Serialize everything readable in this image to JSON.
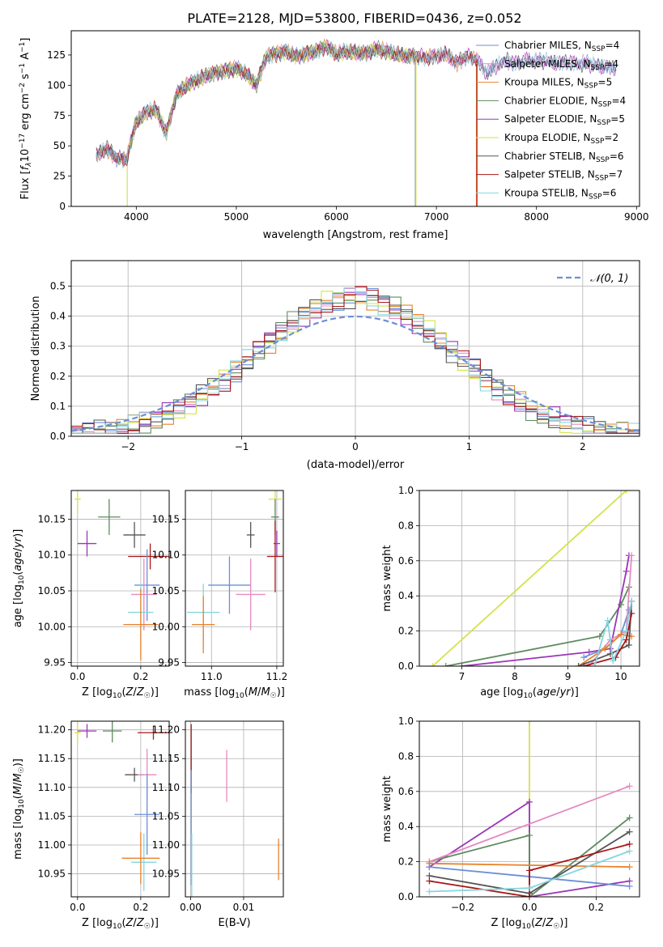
{
  "figure": {
    "title": "PLATE=2128, MJD=53800, FIBERID=0436, z=0.052"
  },
  "colors": {
    "chabrier_miles": "#6b8fd6",
    "salpeter_miles": "#e58ac0",
    "kroupa_miles": "#e8822a",
    "chabrier_elodie": "#5f8a5f",
    "salpeter_elodie": "#9a36b8",
    "kroupa_elodie": "#d5e24b",
    "chabrier_stelib": "#555555",
    "salpeter_stelib": "#a81818",
    "kroupa_stelib": "#86d5e0"
  },
  "chart_data": [
    {
      "id": "spectrum",
      "type": "line",
      "xlabel": "wavelength [Angstrom, rest frame]",
      "ylabel": "Flux [f_λ10^-17 erg cm^-2 s^-1 A^-1]",
      "xlim": [
        3350,
        9030
      ],
      "ylim": [
        0,
        145
      ],
      "xticks": [
        4000,
        5000,
        6000,
        7000,
        8000,
        9000
      ],
      "yticks": [
        0,
        25,
        50,
        75,
        100,
        125
      ],
      "grid": false,
      "legend_position": "top-right",
      "legend": [
        {
          "label": "Chabrier MILES, N",
          "sub": "SSP",
          "suffix": "=4",
          "color": "#6b8fd6"
        },
        {
          "label": "Salpeter MILES, N",
          "sub": "SSP",
          "suffix": "=4",
          "color": "#e58ac0"
        },
        {
          "label": "Kroupa MILES, N",
          "sub": "SSP",
          "suffix": "=5",
          "color": "#e8822a"
        },
        {
          "label": "Chabrier ELODIE, N",
          "sub": "SSP",
          "suffix": "=4",
          "color": "#5f8a5f"
        },
        {
          "label": "Salpeter ELODIE, N",
          "sub": "SSP",
          "suffix": "=5",
          "color": "#9a36b8"
        },
        {
          "label": "Kroupa ELODIE, N",
          "sub": "SSP",
          "suffix": "=2",
          "color": "#d5e24b"
        },
        {
          "label": "Chabrier STELIB, N",
          "sub": "SSP",
          "suffix": "=6",
          "color": "#555555"
        },
        {
          "label": "Salpeter STELIB, N",
          "sub": "SSP",
          "suffix": "=7",
          "color": "#a81818"
        },
        {
          "label": "Kroupa STELIB, N",
          "sub": "SSP",
          "suffix": "=6",
          "color": "#86d5e0"
        }
      ],
      "continuum": {
        "x": [
          3600,
          3700,
          3800,
          3900,
          4000,
          4100,
          4200,
          4300,
          4400,
          4500,
          4600,
          4700,
          4800,
          4900,
          5000,
          5100,
          5200,
          5300,
          5400,
          5500,
          5600,
          5700,
          5800,
          5900,
          6000,
          6100,
          6200,
          6300,
          6400,
          6500,
          6600,
          6700,
          6800,
          6900,
          7000,
          7100,
          7200,
          7300,
          7400,
          7500,
          7600,
          7700,
          7800,
          7900,
          8000,
          8100,
          8200,
          8300,
          8400,
          8500,
          8600,
          8700,
          8800
        ],
        "y": [
          42,
          48,
          40,
          38,
          70,
          78,
          80,
          60,
          92,
          100,
          104,
          108,
          110,
          112,
          114,
          110,
          100,
          124,
          126,
          128,
          124,
          126,
          128,
          132,
          126,
          128,
          127,
          126,
          130,
          128,
          126,
          124,
          124,
          123,
          124,
          126,
          118,
          124,
          122,
          110,
          116,
          120,
          118,
          121,
          120,
          120,
          118,
          119,
          118,
          118,
          116,
          115,
          114
        ]
      },
      "spectral_cutoffs": [
        {
          "model": "Kroupa ELODIE",
          "x": 3910
        },
        {
          "model": "Kroupa ELODIE",
          "x": 6795
        },
        {
          "model": "Chabrier ELODIE",
          "x": 6790
        },
        {
          "model": "Salpeter STELIB",
          "x": 7405
        },
        {
          "model": "Kroupa MILES",
          "x": 7400
        }
      ]
    },
    {
      "id": "residuals",
      "type": "bar",
      "xlabel": "(data-model)/error",
      "ylabel": "Normed distribution",
      "xlim": [
        -2.5,
        2.5
      ],
      "ylim": [
        0,
        0.585
      ],
      "xticks": [
        -2,
        -1,
        0,
        1,
        2
      ],
      "yticks": [
        0.0,
        0.1,
        0.2,
        0.3,
        0.4,
        0.5
      ],
      "grid": true,
      "legend_position": "top-right",
      "legend": [
        {
          "label": "𝒩(0, 1)",
          "style": "dashed",
          "color": "#6b8fd6"
        }
      ],
      "reference_curve": {
        "name": "𝒩(0, 1)",
        "mean": 0,
        "sigma": 1
      },
      "bin_width": 0.1
    },
    {
      "id": "age_vs_Z",
      "type": "scatter",
      "xlabel": "Z [log10(Z/Z☉)]",
      "ylabel": "age [log10(age/yr)]",
      "xlim": [
        -0.02,
        0.29
      ],
      "ylim": [
        9.945,
        10.19
      ],
      "xticks": [
        0.0,
        0.2
      ],
      "yticks": [
        9.95,
        10.0,
        10.05,
        10.1,
        10.15
      ],
      "grid": true,
      "points": [
        {
          "model": "Kroupa ELODIE",
          "x": 0.0,
          "y": 10.178,
          "xerr": 0.01,
          "yerr": 0.02
        },
        {
          "model": "Chabrier ELODIE",
          "x": 0.1,
          "y": 10.153,
          "xerr": 0.035,
          "yerr": 0.025
        },
        {
          "model": "Chabrier STELIB",
          "x": 0.18,
          "y": 10.128,
          "xerr": 0.035,
          "yerr": 0.018
        },
        {
          "model": "Salpeter ELODIE",
          "x": 0.03,
          "y": 10.116,
          "xerr": 0.03,
          "yerr": 0.018
        },
        {
          "model": "Salpeter STELIB",
          "x": 0.23,
          "y": 10.098,
          "xerr": 0.07,
          "yerr": 0.018
        },
        {
          "model": "Chabrier MILES",
          "x": 0.22,
          "y": 10.058,
          "xerr": 0.04,
          "yerr": 0.05
        },
        {
          "model": "Salpeter MILES",
          "x": 0.21,
          "y": 10.045,
          "xerr": 0.04,
          "yerr": 0.05
        },
        {
          "model": "Kroupa STELIB",
          "x": 0.2,
          "y": 10.02,
          "xerr": 0.04,
          "yerr": 0.04
        },
        {
          "model": "Kroupa MILES",
          "x": 0.2,
          "y": 10.003,
          "xerr": 0.055,
          "yerr": 0.05
        }
      ]
    },
    {
      "id": "age_vs_mass",
      "type": "scatter",
      "xlabel": "mass [log10(M/M☉)]",
      "ylabel": "",
      "xlim": [
        10.92,
        11.22
      ],
      "ylim": [
        9.945,
        10.19
      ],
      "xticks": [
        11.0,
        11.2
      ],
      "yticks": [
        9.95,
        10.0,
        10.05,
        10.1,
        10.15
      ],
      "grid": true,
      "points": [
        {
          "model": "Kroupa ELODIE",
          "x": 11.195,
          "y": 10.178,
          "xerr": 0.02,
          "yerr": 0.02
        },
        {
          "model": "Chabrier ELODIE",
          "x": 11.195,
          "y": 10.153,
          "xerr": 0.012,
          "yerr": 0.025
        },
        {
          "model": "Chabrier STELIB",
          "x": 11.12,
          "y": 10.128,
          "xerr": 0.012,
          "yerr": 0.018
        },
        {
          "model": "Salpeter ELODIE",
          "x": 11.2,
          "y": 10.116,
          "xerr": 0.01,
          "yerr": 0.018
        },
        {
          "model": "Salpeter STELIB",
          "x": 11.195,
          "y": 10.098,
          "xerr": 0.025,
          "yerr": 0.05
        },
        {
          "model": "Chabrier MILES",
          "x": 11.055,
          "y": 10.058,
          "xerr": 0.065,
          "yerr": 0.04
        },
        {
          "model": "Salpeter MILES",
          "x": 11.12,
          "y": 10.045,
          "xerr": 0.045,
          "yerr": 0.05
        },
        {
          "model": "Kroupa STELIB",
          "x": 10.975,
          "y": 10.02,
          "xerr": 0.05,
          "yerr": 0.04
        },
        {
          "model": "Kroupa MILES",
          "x": 10.975,
          "y": 10.003,
          "xerr": 0.035,
          "yerr": 0.04
        }
      ]
    },
    {
      "id": "weight_vs_age",
      "type": "line",
      "xlabel": "age [log10(age/yr)]",
      "ylabel": "mass weight",
      "xlim": [
        6.2,
        10.35
      ],
      "ylim": [
        0,
        1.0
      ],
      "xticks": [
        7,
        8,
        9,
        10
      ],
      "yticks": [
        0.0,
        0.2,
        0.4,
        0.6,
        0.8,
        1.0
      ],
      "grid": true,
      "series": [
        {
          "model": "Kroupa ELODIE",
          "x": [
            6.45,
            10.1
          ],
          "y": [
            0.0,
            1.0
          ]
        },
        {
          "model": "Chabrier ELODIE",
          "x": [
            6.7,
            9.6,
            10.0,
            10.15
          ],
          "y": [
            0.0,
            0.17,
            0.35,
            0.45
          ]
        },
        {
          "model": "Salpeter ELODIE",
          "x": [
            7.0,
            9.4,
            9.8,
            10.1,
            10.15
          ],
          "y": [
            0.0,
            0.08,
            0.1,
            0.54,
            0.63
          ]
        },
        {
          "model": "Chabrier MILES",
          "x": [
            9.3,
            9.7,
            10.0,
            10.15
          ],
          "y": [
            0.05,
            0.1,
            0.18,
            0.32
          ]
        },
        {
          "model": "Salpeter MILES",
          "x": [
            9.4,
            9.8,
            10.1,
            10.2
          ],
          "y": [
            0.0,
            0.15,
            0.2,
            0.63
          ]
        },
        {
          "model": "Kroupa MILES",
          "x": [
            9.2,
            9.7,
            10.0,
            10.2
          ],
          "y": [
            0.0,
            0.1,
            0.18,
            0.17
          ]
        },
        {
          "model": "Chabrier STELIB",
          "x": [
            9.2,
            9.8,
            10.15,
            10.2
          ],
          "y": [
            0.0,
            0.07,
            0.12,
            0.37
          ]
        },
        {
          "model": "Salpeter STELIB",
          "x": [
            9.3,
            9.9,
            10.1,
            10.2
          ],
          "y": [
            0.0,
            0.05,
            0.15,
            0.3
          ]
        },
        {
          "model": "Kroupa STELIB",
          "x": [
            9.5,
            9.75,
            9.85,
            10.1,
            10.2
          ],
          "y": [
            0.0,
            0.26,
            0.03,
            0.2,
            0.37
          ]
        }
      ]
    },
    {
      "id": "mass_vs_Z",
      "type": "scatter",
      "xlabel": "Z [log10(Z/Z☉)]",
      "ylabel": "mass [log10(M/M☉)]",
      "xlim": [
        -0.02,
        0.29
      ],
      "ylim": [
        10.91,
        11.215
      ],
      "xticks": [
        0.0,
        0.2
      ],
      "yticks": [
        10.95,
        11.0,
        11.05,
        11.1,
        11.15,
        11.2
      ],
      "grid": true,
      "points": [
        {
          "model": "Kroupa ELODIE",
          "x": 0.0,
          "y": 11.195,
          "xerr": 0.01,
          "yerr": 0.02
        },
        {
          "model": "Salpeter ELODIE",
          "x": 0.03,
          "y": 11.198,
          "xerr": 0.03,
          "yerr": 0.012
        },
        {
          "model": "Chabrier ELODIE",
          "x": 0.11,
          "y": 11.198,
          "xerr": 0.03,
          "yerr": 0.02
        },
        {
          "model": "Salpeter STELIB",
          "x": 0.24,
          "y": 11.195,
          "xerr": 0.05,
          "yerr": 0.012
        },
        {
          "model": "Chabrier STELIB",
          "x": 0.18,
          "y": 11.122,
          "xerr": 0.03,
          "yerr": 0.012
        },
        {
          "model": "Salpeter MILES",
          "x": 0.22,
          "y": 11.122,
          "xerr": 0.03,
          "yerr": 0.045
        },
        {
          "model": "Chabrier MILES",
          "x": 0.22,
          "y": 11.053,
          "xerr": 0.04,
          "yerr": 0.07
        },
        {
          "model": "Kroupa STELIB",
          "x": 0.21,
          "y": 10.97,
          "xerr": 0.04,
          "yerr": 0.05
        },
        {
          "model": "Kroupa MILES",
          "x": 0.2,
          "y": 10.977,
          "xerr": 0.06,
          "yerr": 0.045
        }
      ]
    },
    {
      "id": "mass_vs_ebv",
      "type": "scatter",
      "xlabel": "E(B-V)",
      "ylabel": "",
      "xlim": [
        -0.001,
        0.0175
      ],
      "ylim": [
        10.91,
        11.215
      ],
      "xticks": [
        0.0,
        0.01
      ],
      "yticks": [
        10.95,
        11.0,
        11.05,
        11.1,
        11.15,
        11.2
      ],
      "grid": true,
      "points": [
        {
          "model": "Salpeter STELIB",
          "x": 0.0001,
          "y": 11.15,
          "xerr": 0,
          "yerr": 0.06
        },
        {
          "model": "Chabrier MILES",
          "x": 0.0001,
          "y": 11.03,
          "xerr": 0,
          "yerr": 0.1
        },
        {
          "model": "Kroupa STELIB",
          "x": 0.0002,
          "y": 10.96,
          "xerr": 0,
          "yerr": 0.06
        },
        {
          "model": "Salpeter MILES",
          "x": 0.0068,
          "y": 11.12,
          "xerr": 0,
          "yerr": 0.045
        },
        {
          "model": "Kroupa MILES",
          "x": 0.0166,
          "y": 10.975,
          "xerr": 0,
          "yerr": 0.036
        }
      ]
    },
    {
      "id": "weight_vs_Z",
      "type": "line",
      "xlabel": "Z [log10(Z/Z☉)]",
      "ylabel": "mass weight",
      "xlim": [
        -0.33,
        0.33
      ],
      "ylim": [
        0,
        1.0
      ],
      "xticks": [
        -0.2,
        0.0,
        0.2
      ],
      "yticks": [
        0.0,
        0.2,
        0.4,
        0.6,
        0.8,
        1.0
      ],
      "grid": true,
      "series": [
        {
          "model": "Kroupa ELODIE",
          "x": [
            0.0,
            0.0
          ],
          "y": [
            0.0,
            1.0
          ]
        },
        {
          "model": "Salpeter ELODIE",
          "x": [
            -0.3,
            0.0,
            0.0,
            0.3
          ],
          "y": [
            0.17,
            0.54,
            0.0,
            0.09
          ]
        },
        {
          "model": "Chabrier ELODIE",
          "x": [
            -0.3,
            0.0,
            0.0,
            0.3
          ],
          "y": [
            0.2,
            0.35,
            0.0,
            0.45
          ]
        },
        {
          "model": "Salpeter MILES",
          "x": [
            -0.3,
            0.3
          ],
          "y": [
            0.2,
            0.63
          ]
        },
        {
          "model": "Kroupa MILES",
          "x": [
            -0.3,
            0.3
          ],
          "y": [
            0.19,
            0.17
          ]
        },
        {
          "model": "Chabrier MILES",
          "x": [
            -0.3,
            0.3
          ],
          "y": [
            0.17,
            0.06
          ]
        },
        {
          "model": "Chabrier STELIB",
          "x": [
            -0.3,
            0.0,
            0.3
          ],
          "y": [
            0.12,
            0.02,
            0.37
          ]
        },
        {
          "model": "Salpeter STELIB",
          "x": [
            -0.3,
            0.0,
            0.0,
            0.3
          ],
          "y": [
            0.09,
            0.0,
            0.15,
            0.3
          ]
        },
        {
          "model": "Kroupa STELIB",
          "x": [
            -0.3,
            0.0,
            0.3
          ],
          "y": [
            0.03,
            0.05,
            0.26
          ]
        }
      ]
    }
  ]
}
